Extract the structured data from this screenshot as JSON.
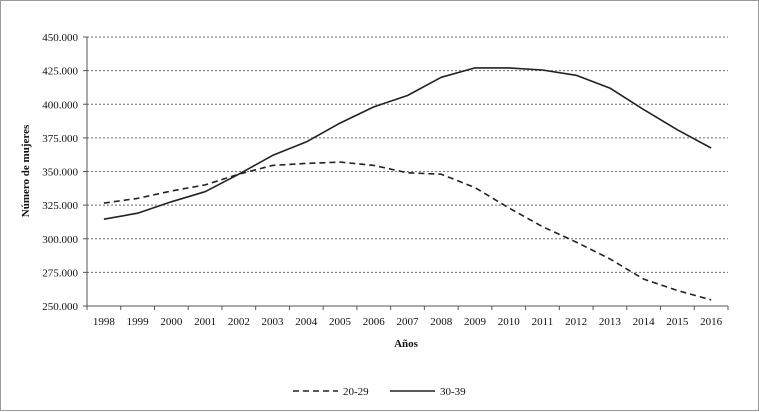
{
  "chart_data": {
    "type": "line",
    "xlabel": "Años",
    "ylabel": "Número de mujeres",
    "categories": [
      "1998",
      "1999",
      "2000",
      "2001",
      "2002",
      "2003",
      "2004",
      "2005",
      "2006",
      "2007",
      "2008",
      "2009",
      "2010",
      "2011",
      "2012",
      "2013",
      "2014",
      "2015",
      "2016"
    ],
    "ylim": [
      250000,
      450000
    ],
    "yticks": [
      250000,
      275000,
      300000,
      325000,
      350000,
      375000,
      400000,
      425000,
      450000
    ],
    "ytick_labels": [
      "250.000",
      "275.000",
      "300.000",
      "325.000",
      "350.000",
      "375.000",
      "400.000",
      "425.000",
      "450.000"
    ],
    "grid": "horizontal-dotted",
    "legend_position": "bottom-center",
    "series": [
      {
        "name": "20-29",
        "style": "dashed",
        "color": "#222222",
        "values": [
          326500,
          330000,
          335500,
          340000,
          348000,
          354500,
          356000,
          357000,
          354500,
          349000,
          348000,
          338000,
          323000,
          309000,
          297500,
          285000,
          270000,
          261500,
          254500
        ]
      },
      {
        "name": "30-39",
        "style": "solid",
        "color": "#222222",
        "values": [
          314500,
          319000,
          327500,
          335000,
          348000,
          362000,
          372000,
          386000,
          398000,
          406500,
          420000,
          427000,
          427000,
          425500,
          421500,
          412000,
          396000,
          381000,
          367500
        ]
      }
    ]
  }
}
